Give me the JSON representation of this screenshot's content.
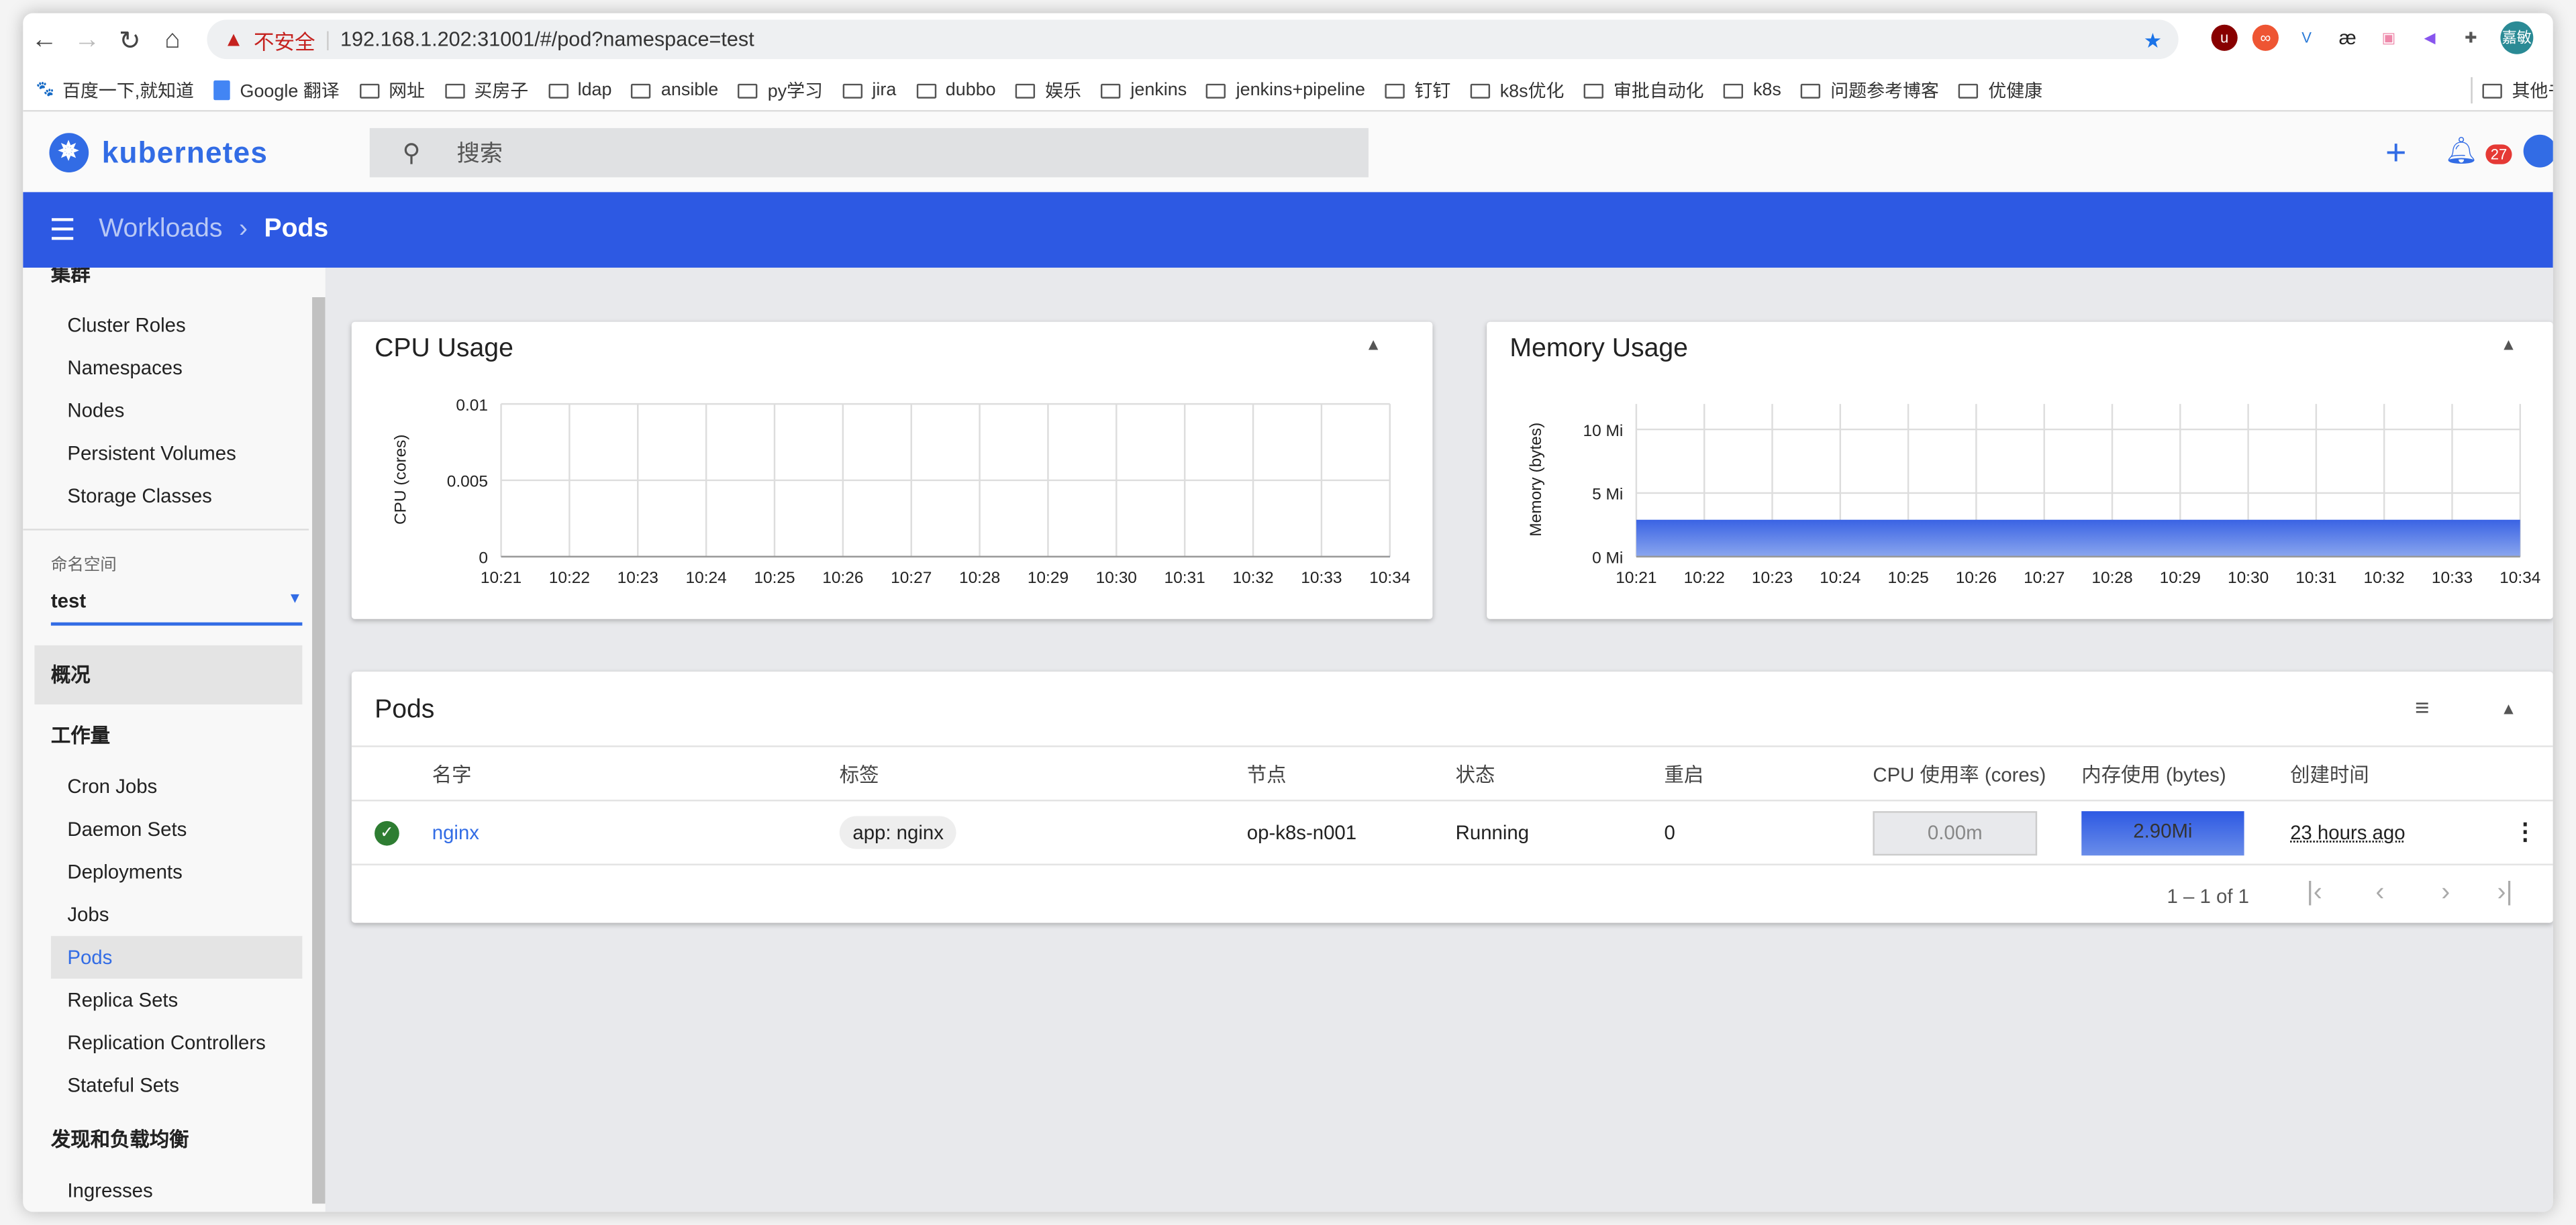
{
  "browser": {
    "url": "192.168.1.202:31001/#/pod?namespace=test",
    "insecure_label": "不安全",
    "profile": "嘉敏",
    "bookmarks": [
      "百度一下,就知道",
      "Google 翻译",
      "网址",
      "买房子",
      "ldap",
      "ansible",
      "py学习",
      "jira",
      "dubbo",
      "娱乐",
      "jenkins",
      "jenkins+pipeline",
      "钉钉",
      "k8s优化",
      "审批自动化",
      "k8s",
      "问题参考博客",
      "优健康"
    ],
    "other_bookmarks": "其他书签"
  },
  "header": {
    "brand": "kubernetes",
    "search_placeholder": "搜索",
    "notifications": "27"
  },
  "breadcrumb": {
    "parent": "Workloads",
    "current": "Pods"
  },
  "sidebar": {
    "cluster_header": "集群",
    "cluster_items": [
      "Cluster Roles",
      "Namespaces",
      "Nodes",
      "Persistent Volumes",
      "Storage Classes"
    ],
    "namespace_label": "命名空间",
    "namespace_value": "test",
    "overview": "概况",
    "workloads_header": "工作量",
    "workload_items": [
      "Cron Jobs",
      "Daemon Sets",
      "Deployments",
      "Jobs",
      "Pods",
      "Replica Sets",
      "Replication Controllers",
      "Stateful Sets"
    ],
    "active": "Pods",
    "discovery_header": "发现和负载均衡",
    "discovery_items": [
      "Ingresses"
    ]
  },
  "chart_data": [
    {
      "type": "line",
      "title": "CPU Usage",
      "ylabel": "CPU (cores)",
      "ylim": [
        0,
        0.01
      ],
      "yticks": [
        "0",
        "0.005",
        "0.01"
      ],
      "x": [
        "10:21",
        "10:22",
        "10:23",
        "10:24",
        "10:25",
        "10:26",
        "10:27",
        "10:28",
        "10:29",
        "10:30",
        "10:31",
        "10:32",
        "10:33",
        "10:34"
      ],
      "values": [
        0,
        0,
        0,
        0,
        0,
        0,
        0,
        0,
        0,
        0,
        0,
        0,
        0,
        0
      ],
      "grid": true
    },
    {
      "type": "area",
      "title": "Memory Usage",
      "ylabel": "Memory (bytes)",
      "ylim": [
        0,
        12
      ],
      "unit": "Mi",
      "yticks": [
        "0 Mi",
        "5 Mi",
        "10 Mi"
      ],
      "x": [
        "10:21",
        "10:22",
        "10:23",
        "10:24",
        "10:25",
        "10:26",
        "10:27",
        "10:28",
        "10:29",
        "10:30",
        "10:31",
        "10:32",
        "10:33",
        "10:34"
      ],
      "values": [
        2.9,
        2.9,
        2.9,
        2.9,
        2.9,
        2.9,
        2.9,
        2.9,
        2.9,
        2.9,
        2.9,
        2.9,
        2.9,
        2.9
      ],
      "grid": true,
      "color": "#3a63e4"
    }
  ],
  "pods": {
    "title": "Pods",
    "columns": [
      "名字",
      "标签",
      "节点",
      "状态",
      "重启",
      "CPU 使用率 (cores)",
      "内存使用 (bytes)",
      "创建时间"
    ],
    "rows": [
      {
        "name": "nginx",
        "label": "app: nginx",
        "node": "op-k8s-n001",
        "status": "Running",
        "restarts": "0",
        "cpu": "0.00m",
        "memory": "2.90Mi",
        "created": "23 hours ago"
      }
    ],
    "pagination": "1 – 1 of 1"
  },
  "colors": {
    "primary": "#2d59e3",
    "running": "#2e7d32"
  }
}
